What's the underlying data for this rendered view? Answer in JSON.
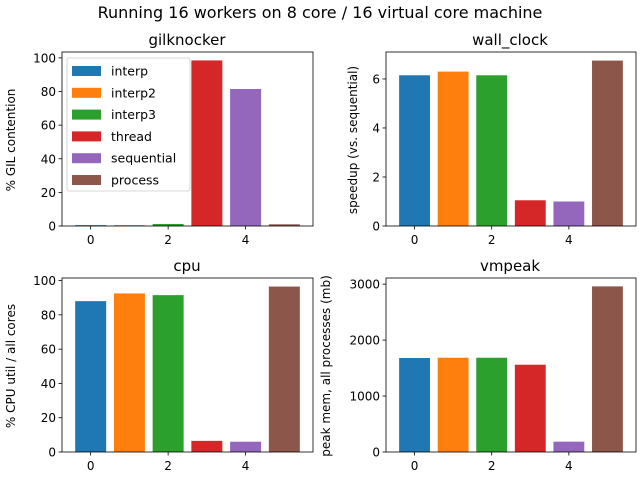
{
  "figure": {
    "title": "Running 16 workers on 8 core / 16 virtual core machine"
  },
  "colors": {
    "interp": "#1f77b4",
    "interp2": "#ff7f0e",
    "interp3": "#2ca02c",
    "thread": "#d62728",
    "sequential": "#9467bd",
    "process": "#8c564b"
  },
  "chart_data": [
    {
      "type": "bar",
      "title": "gilknocker",
      "ylabel": "% GIL contention",
      "x": [
        0,
        1,
        2,
        3,
        4,
        5
      ],
      "categories": [
        "interp",
        "interp2",
        "interp3",
        "thread",
        "sequential",
        "process"
      ],
      "values": [
        0.5,
        0.5,
        1.2,
        98.5,
        81.5,
        1.0
      ],
      "ylim": [
        0,
        103.5
      ],
      "yticks": [
        0,
        20,
        40,
        60,
        80,
        100
      ],
      "xticks": [
        0,
        2,
        4
      ],
      "legend": {
        "position": "upper-left",
        "entries": [
          "interp",
          "interp2",
          "interp3",
          "thread",
          "sequential",
          "process"
        ]
      }
    },
    {
      "type": "bar",
      "title": "wall_clock",
      "ylabel": "speedup (vs. sequential)",
      "x": [
        0,
        1,
        2,
        3,
        4,
        5
      ],
      "categories": [
        "interp",
        "interp2",
        "interp3",
        "thread",
        "sequential",
        "process"
      ],
      "values": [
        6.15,
        6.3,
        6.15,
        1.05,
        1.0,
        6.75
      ],
      "ylim": [
        0,
        7.1
      ],
      "yticks": [
        0,
        2,
        4,
        6
      ],
      "xticks": [
        0,
        2,
        4
      ]
    },
    {
      "type": "bar",
      "title": "cpu",
      "ylabel": "% CPU util / all cores",
      "x": [
        0,
        1,
        2,
        3,
        4,
        5
      ],
      "categories": [
        "interp",
        "interp2",
        "interp3",
        "thread",
        "sequential",
        "process"
      ],
      "values": [
        88,
        92.5,
        91.5,
        6.5,
        6.0,
        96.5
      ],
      "ylim": [
        0,
        101.5
      ],
      "yticks": [
        0,
        20,
        40,
        60,
        80,
        100
      ],
      "xticks": [
        0,
        2,
        4
      ]
    },
    {
      "type": "bar",
      "title": "vmpeak",
      "ylabel": "peak mem, all processes (mb)",
      "x": [
        0,
        1,
        2,
        3,
        4,
        5
      ],
      "categories": [
        "interp",
        "interp2",
        "interp3",
        "thread",
        "sequential",
        "process"
      ],
      "values": [
        1680,
        1685,
        1685,
        1560,
        185,
        2960
      ],
      "ylim": [
        0,
        3110
      ],
      "yticks": [
        0,
        1000,
        2000,
        3000
      ],
      "xticks": [
        0,
        2,
        4
      ]
    }
  ]
}
